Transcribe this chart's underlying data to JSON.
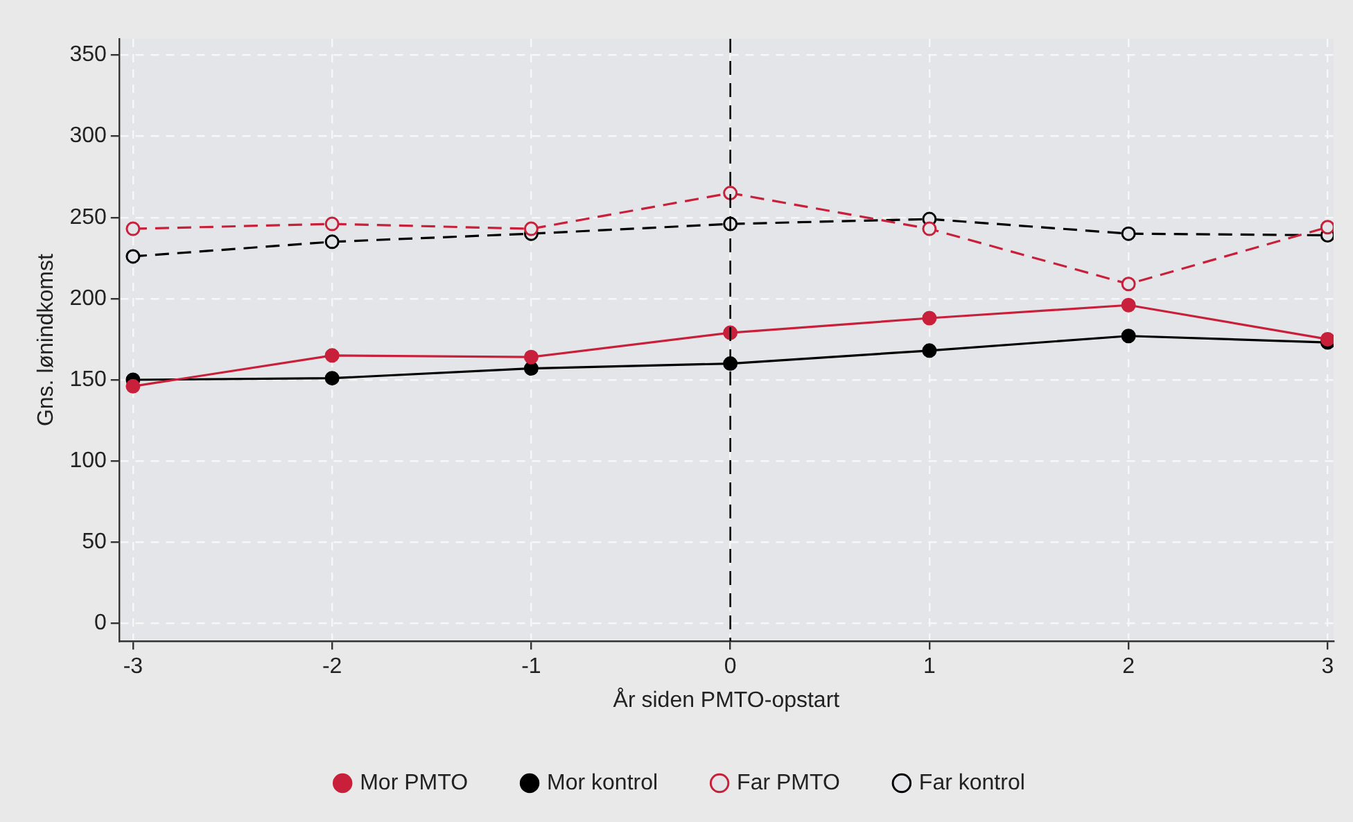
{
  "chart_data": {
    "type": "line",
    "xlabel": "År siden PMTO-opstart",
    "ylabel": "Gns. lønindkomst",
    "x": [
      -3,
      -2,
      -1,
      0,
      1,
      2,
      3
    ],
    "series": [
      {
        "name": "Mor PMTO",
        "color": "#c8203a",
        "values": [
          146,
          165,
          164,
          179,
          188,
          196,
          175
        ],
        "marker": "circle",
        "line_style": "solid"
      },
      {
        "name": "Mor kontrol",
        "color": "#000000",
        "values": [
          150,
          151,
          157,
          160,
          168,
          177,
          173
        ],
        "marker": "circle",
        "line_style": "solid"
      },
      {
        "name": "Far PMTO",
        "color": "#c8203a",
        "values": [
          243,
          246,
          243,
          265,
          243,
          209,
          244
        ],
        "marker": "circle",
        "line_style": "dashed"
      },
      {
        "name": "Far kontrol",
        "color": "#000000",
        "values": [
          226,
          235,
          240,
          246,
          249,
          240,
          239
        ],
        "marker": "circle",
        "line_style": "dashed"
      }
    ],
    "xlim": [
      -3.07,
      3.03
    ],
    "xticks": [
      -3,
      -2,
      -1,
      0,
      1,
      2,
      3
    ],
    "ylim": [
      -11,
      360
    ],
    "yticks": [
      0,
      50,
      100,
      150,
      200,
      250,
      300,
      350
    ],
    "ref_lines": [
      {
        "axis": "x",
        "value": 0,
        "color": "#000000",
        "line_style": "dashed"
      }
    ],
    "grid": true,
    "legend": "bottom"
  }
}
